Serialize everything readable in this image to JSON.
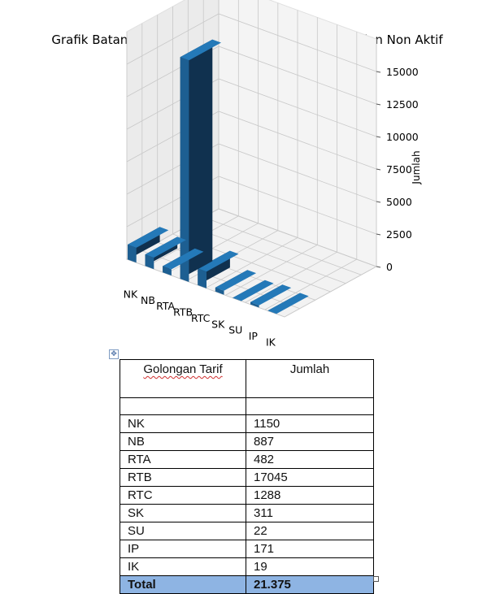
{
  "chart_data": {
    "type": "bar3d",
    "title": "Grafik Batang 3D - Golongan Tarif Pelanggan Aktif dan Non Aktif",
    "zlabel": "Jumlah",
    "categories": [
      "NK",
      "NB",
      "RTA",
      "RTB",
      "RTC",
      "SK",
      "SU",
      "IP",
      "IK"
    ],
    "values": [
      1150,
      887,
      482,
      17045,
      1288,
      311,
      22,
      171,
      19
    ],
    "z_ticks": [
      "0",
      "2500",
      "5000",
      "7500",
      "10000",
      "12500",
      "15000"
    ],
    "bar_color": "#1f77b4",
    "grid": true
  },
  "table": {
    "headers": [
      "Golongan Tarif",
      "Jumlah"
    ],
    "rows": [
      {
        "label": "NK",
        "value": "1150"
      },
      {
        "label": "NB",
        "value": "887"
      },
      {
        "label": "RTA",
        "value": "482"
      },
      {
        "label": "RTB",
        "value": "17045"
      },
      {
        "label": "RTC",
        "value": "1288"
      },
      {
        "label": "SK",
        "value": "311"
      },
      {
        "label": "SU",
        "value": "22"
      },
      {
        "label": "IP",
        "value": "171"
      },
      {
        "label": "IK",
        "value": "19"
      }
    ],
    "total": {
      "label": "Total",
      "value": "21.375"
    },
    "total_color": "#8eb4e3"
  }
}
